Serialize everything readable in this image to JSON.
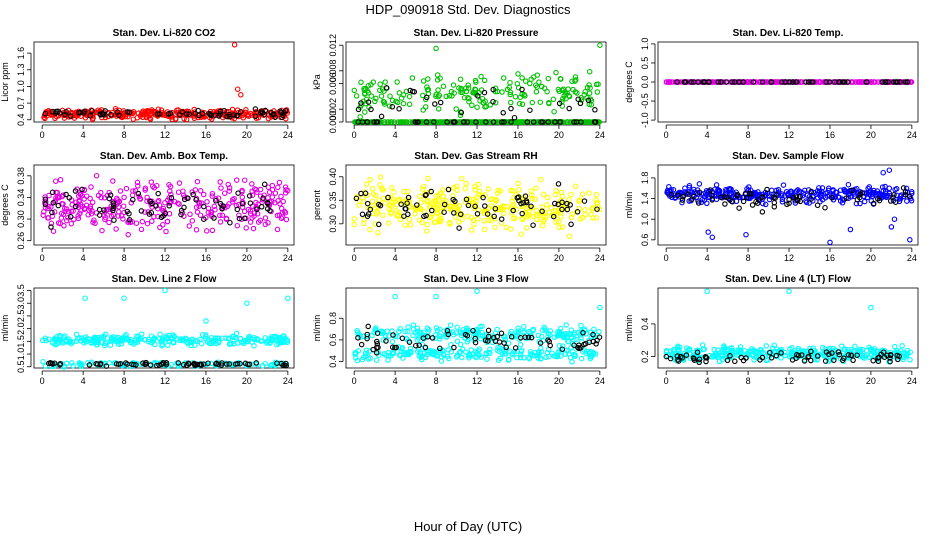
{
  "page": {
    "title": "HDP_090918  Std. Dev. Diagnostics",
    "xlabel": "Hour of Day (UTC)"
  },
  "chart_data": [
    {
      "type": "scatter",
      "title": "Stan. Dev. Li-820 CO2",
      "ylabel": "Licor ppm",
      "xlim": [
        -0.8,
        24.6
      ],
      "ylim": [
        0.36,
        1.8
      ],
      "xticks": [
        0,
        4,
        8,
        12,
        16,
        20,
        24
      ],
      "yticks": [
        0.4,
        0.7,
        1.0,
        1.3,
        1.6
      ],
      "ytick_labels": [
        "0.4",
        "0.7",
        "1.0",
        "1.3",
        "1.6"
      ],
      "series": [
        {
          "color": "#ff0000",
          "base": 0.5,
          "spread": 0.05,
          "count": 320,
          "outliers": [
            [
              18.8,
              1.75
            ],
            [
              19.1,
              0.95
            ],
            [
              19.4,
              0.85
            ],
            [
              23.8,
              0.42
            ]
          ]
        },
        {
          "color": "#000000",
          "base": 0.52,
          "spread": 0.04,
          "count": 70,
          "outliers": []
        }
      ]
    },
    {
      "type": "scatter",
      "title": "Stan. Dev. Li-820 Pressure",
      "ylabel": "kPa",
      "xlim": [
        -0.8,
        24.6
      ],
      "ylim": [
        0,
        0.0125
      ],
      "xticks": [
        0,
        4,
        8,
        12,
        16,
        20,
        24
      ],
      "yticks": [
        0.0,
        0.002,
        0.006,
        0.008,
        0.012
      ],
      "ytick_labels": [
        "0.000",
        "0.002",
        "0.006",
        "0.008",
        "0.012"
      ],
      "series": [
        {
          "color": "#00c000",
          "base": 0.0,
          "spread": 0.0,
          "count": 300,
          "outliers": []
        },
        {
          "color": "#00c000",
          "base": 0.0045,
          "spread": 0.0018,
          "count": 200,
          "outliers": [
            [
              8.0,
              0.0115
            ],
            [
              24.0,
              0.012
            ]
          ]
        },
        {
          "color": "#000000",
          "base": 0.0,
          "spread": 0.0,
          "count": 40,
          "outliers": []
        },
        {
          "color": "#000000",
          "base": 0.0035,
          "spread": 0.0015,
          "count": 30,
          "outliers": []
        }
      ]
    },
    {
      "type": "scatter",
      "title": "Stan. Dev. Li-820 Temp.",
      "ylabel": "degrees C",
      "xlim": [
        -0.8,
        24.6
      ],
      "ylim": [
        -1.05,
        1.05
      ],
      "xticks": [
        0,
        4,
        8,
        12,
        16,
        20,
        24
      ],
      "yticks": [
        -1.0,
        -0.5,
        0.0,
        0.5,
        1.0
      ],
      "ytick_labels": [
        "-1.0",
        "-0.5",
        "0.0",
        "0.5",
        "1.0"
      ],
      "series": [
        {
          "color": "#e000e0",
          "base": 0.0,
          "spread": 0.0,
          "count": 260,
          "outliers": []
        },
        {
          "color": "#000000",
          "base": 0.0,
          "spread": 0.0,
          "count": 60,
          "outliers": []
        }
      ]
    },
    {
      "type": "scatter",
      "title": "Stan. Dev. Amb. Box Temp.",
      "ylabel": "degrees C",
      "xlim": [
        -0.8,
        24.6
      ],
      "ylim": [
        0.252,
        0.4
      ],
      "xticks": [
        0,
        4,
        8,
        12,
        16,
        20,
        24
      ],
      "yticks": [
        0.26,
        0.3,
        0.34,
        0.38
      ],
      "ytick_labels": [
        "0.26",
        "0.30",
        "0.34",
        "0.38"
      ],
      "series": [
        {
          "color": "#e000e0",
          "base": 0.325,
          "spread": 0.028,
          "count": 330,
          "outliers": []
        },
        {
          "color": "#000000",
          "base": 0.325,
          "spread": 0.022,
          "count": 70,
          "outliers": []
        }
      ]
    },
    {
      "type": "scatter",
      "title": "Stan. Dev. Gas Stream RH",
      "ylabel": "percent",
      "xlim": [
        -0.8,
        24.6
      ],
      "ylim": [
        0.255,
        0.425
      ],
      "xticks": [
        0,
        4,
        8,
        12,
        16,
        20,
        24
      ],
      "yticks": [
        0.3,
        0.35,
        0.4
      ],
      "ytick_labels": [
        "0.30",
        "0.35",
        "0.40"
      ],
      "series": [
        {
          "color": "#ffff00",
          "base": 0.335,
          "spread": 0.03,
          "count": 330,
          "outliers": []
        },
        {
          "color": "#000000",
          "base": 0.335,
          "spread": 0.025,
          "count": 70,
          "outliers": []
        }
      ]
    },
    {
      "type": "scatter",
      "title": "Stan. Dev. Sample Flow",
      "ylabel": "ml/min",
      "xlim": [
        -0.8,
        24.6
      ],
      "ylim": [
        0.5,
        2.05
      ],
      "xticks": [
        0,
        4,
        8,
        12,
        16,
        20,
        24
      ],
      "yticks": [
        0.6,
        1.0,
        1.4,
        1.8
      ],
      "ytick_labels": [
        "0.6",
        "1.0",
        "1.4",
        "1.8"
      ],
      "series": [
        {
          "color": "#0000ff",
          "base": 1.48,
          "spread": 0.1,
          "count": 320,
          "outliers": [
            [
              4.1,
              0.75
            ],
            [
              4.5,
              0.65
            ],
            [
              7.8,
              0.7
            ],
            [
              16.0,
              0.55
            ],
            [
              18.0,
              0.8
            ],
            [
              22.0,
              0.85
            ],
            [
              22.3,
              1.0
            ],
            [
              23.8,
              0.6
            ],
            [
              21.2,
              1.9
            ],
            [
              21.8,
              1.95
            ]
          ]
        },
        {
          "color": "#000000",
          "base": 1.4,
          "spread": 0.12,
          "count": 70,
          "outliers": []
        }
      ]
    },
    {
      "type": "scatter",
      "title": "Stan. Dev. Line 2 Flow",
      "ylabel": "ml/min",
      "xlim": [
        -0.8,
        24.6
      ],
      "ylim": [
        0.45,
        3.6
      ],
      "xticks": [
        0,
        4,
        8,
        12,
        16,
        20,
        24
      ],
      "yticks": [
        0.5,
        1.0,
        1.5,
        2.0,
        2.5,
        3.0,
        3.5
      ],
      "ytick_labels": [
        "0.5",
        "1.0",
        "1.5",
        "2.0",
        "2.5",
        "3.0",
        "3.5"
      ],
      "series": [
        {
          "color": "#00ffff",
          "base": 1.55,
          "spread": 0.12,
          "count": 260,
          "outliers": [
            [
              4.2,
              3.2
            ],
            [
              8.0,
              3.2
            ],
            [
              12.0,
              3.5
            ],
            [
              16.0,
              2.3
            ],
            [
              20.0,
              3.0
            ],
            [
              24.0,
              3.2
            ]
          ]
        },
        {
          "color": "#00ffff",
          "base": 0.6,
          "spread": 0.05,
          "count": 120,
          "outliers": []
        },
        {
          "color": "#000000",
          "base": 0.6,
          "spread": 0.04,
          "count": 70,
          "outliers": []
        }
      ]
    },
    {
      "type": "scatter",
      "title": "Stan. Dev. Line 3 Flow",
      "ylabel": "ml/min",
      "xlim": [
        -0.8,
        24.6
      ],
      "ylim": [
        0.34,
        1.08
      ],
      "xticks": [
        0,
        4,
        8,
        12,
        16,
        20,
        24
      ],
      "yticks": [
        0.4,
        0.6,
        0.8
      ],
      "ytick_labels": [
        "0.4",
        "0.6",
        "0.8"
      ],
      "series": [
        {
          "color": "#00ffff",
          "base": 0.65,
          "spread": 0.05,
          "count": 220,
          "outliers": [
            [
              4.0,
              1.0
            ],
            [
              8.0,
              1.0
            ],
            [
              12.0,
              1.05
            ],
            [
              24.0,
              0.9
            ]
          ]
        },
        {
          "color": "#00ffff",
          "base": 0.47,
          "spread": 0.04,
          "count": 200,
          "outliers": []
        },
        {
          "color": "#000000",
          "base": 0.6,
          "spread": 0.06,
          "count": 70,
          "outliers": []
        }
      ]
    },
    {
      "type": "scatter",
      "title": "Stan. Dev. Line 4 (LT) Flow",
      "ylabel": "ml/min",
      "xlim": [
        -0.8,
        24.6
      ],
      "ylim": [
        0.13,
        0.62
      ],
      "xticks": [
        0,
        4,
        8,
        12,
        16,
        20,
        24
      ],
      "yticks": [
        0.2,
        0.4
      ],
      "ytick_labels": [
        "0.2",
        "0.4"
      ],
      "series": [
        {
          "color": "#00ffff",
          "base": 0.22,
          "spread": 0.025,
          "count": 330,
          "outliers": [
            [
              4.0,
              0.6
            ],
            [
              12.0,
              0.6
            ],
            [
              20.0,
              0.5
            ]
          ]
        },
        {
          "color": "#000000",
          "base": 0.2,
          "spread": 0.02,
          "count": 70,
          "outliers": []
        }
      ]
    }
  ]
}
